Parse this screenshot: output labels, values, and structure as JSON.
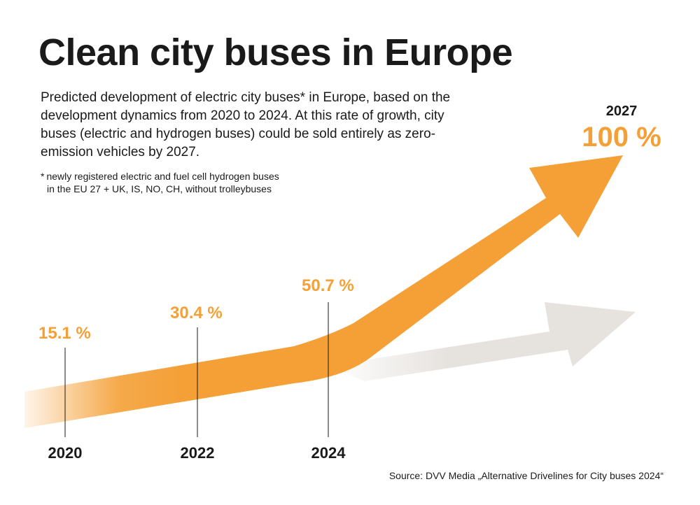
{
  "title": "Clean city buses in Europe",
  "subtitle": "Predicted development of electric city buses* in Europe, based on the development dynamics from 2020 to 2024. At this rate of growth, city buses (electric and hydrogen buses) could be sold entirely as zero-emission vehicles by 2027.",
  "footnote": {
    "mark": "*",
    "line1": "newly registered electric and fuel cell hydrogen buses",
    "line2": "in the EU 27 + UK, IS, NO, CH, without trolleybuses"
  },
  "source": "Source: DVV Media „Alternative Drivelines for City buses 2024“",
  "colors": {
    "accent": "#f4a037",
    "gray_arrow": "#e6e2de",
    "text": "#1a1a1a"
  },
  "chart_data": {
    "type": "line",
    "unit": "%",
    "x": [
      2020,
      2022,
      2024,
      2027
    ],
    "values": [
      15.1,
      30.4,
      50.7,
      100
    ],
    "value_labels": [
      "15.1 %",
      "30.4 %",
      "50.7 %",
      "100 %"
    ],
    "x_labels": [
      "2020",
      "2022",
      "2024",
      ""
    ],
    "top_year_label": "2027",
    "projection": "arrow from 2024 to 2027"
  }
}
